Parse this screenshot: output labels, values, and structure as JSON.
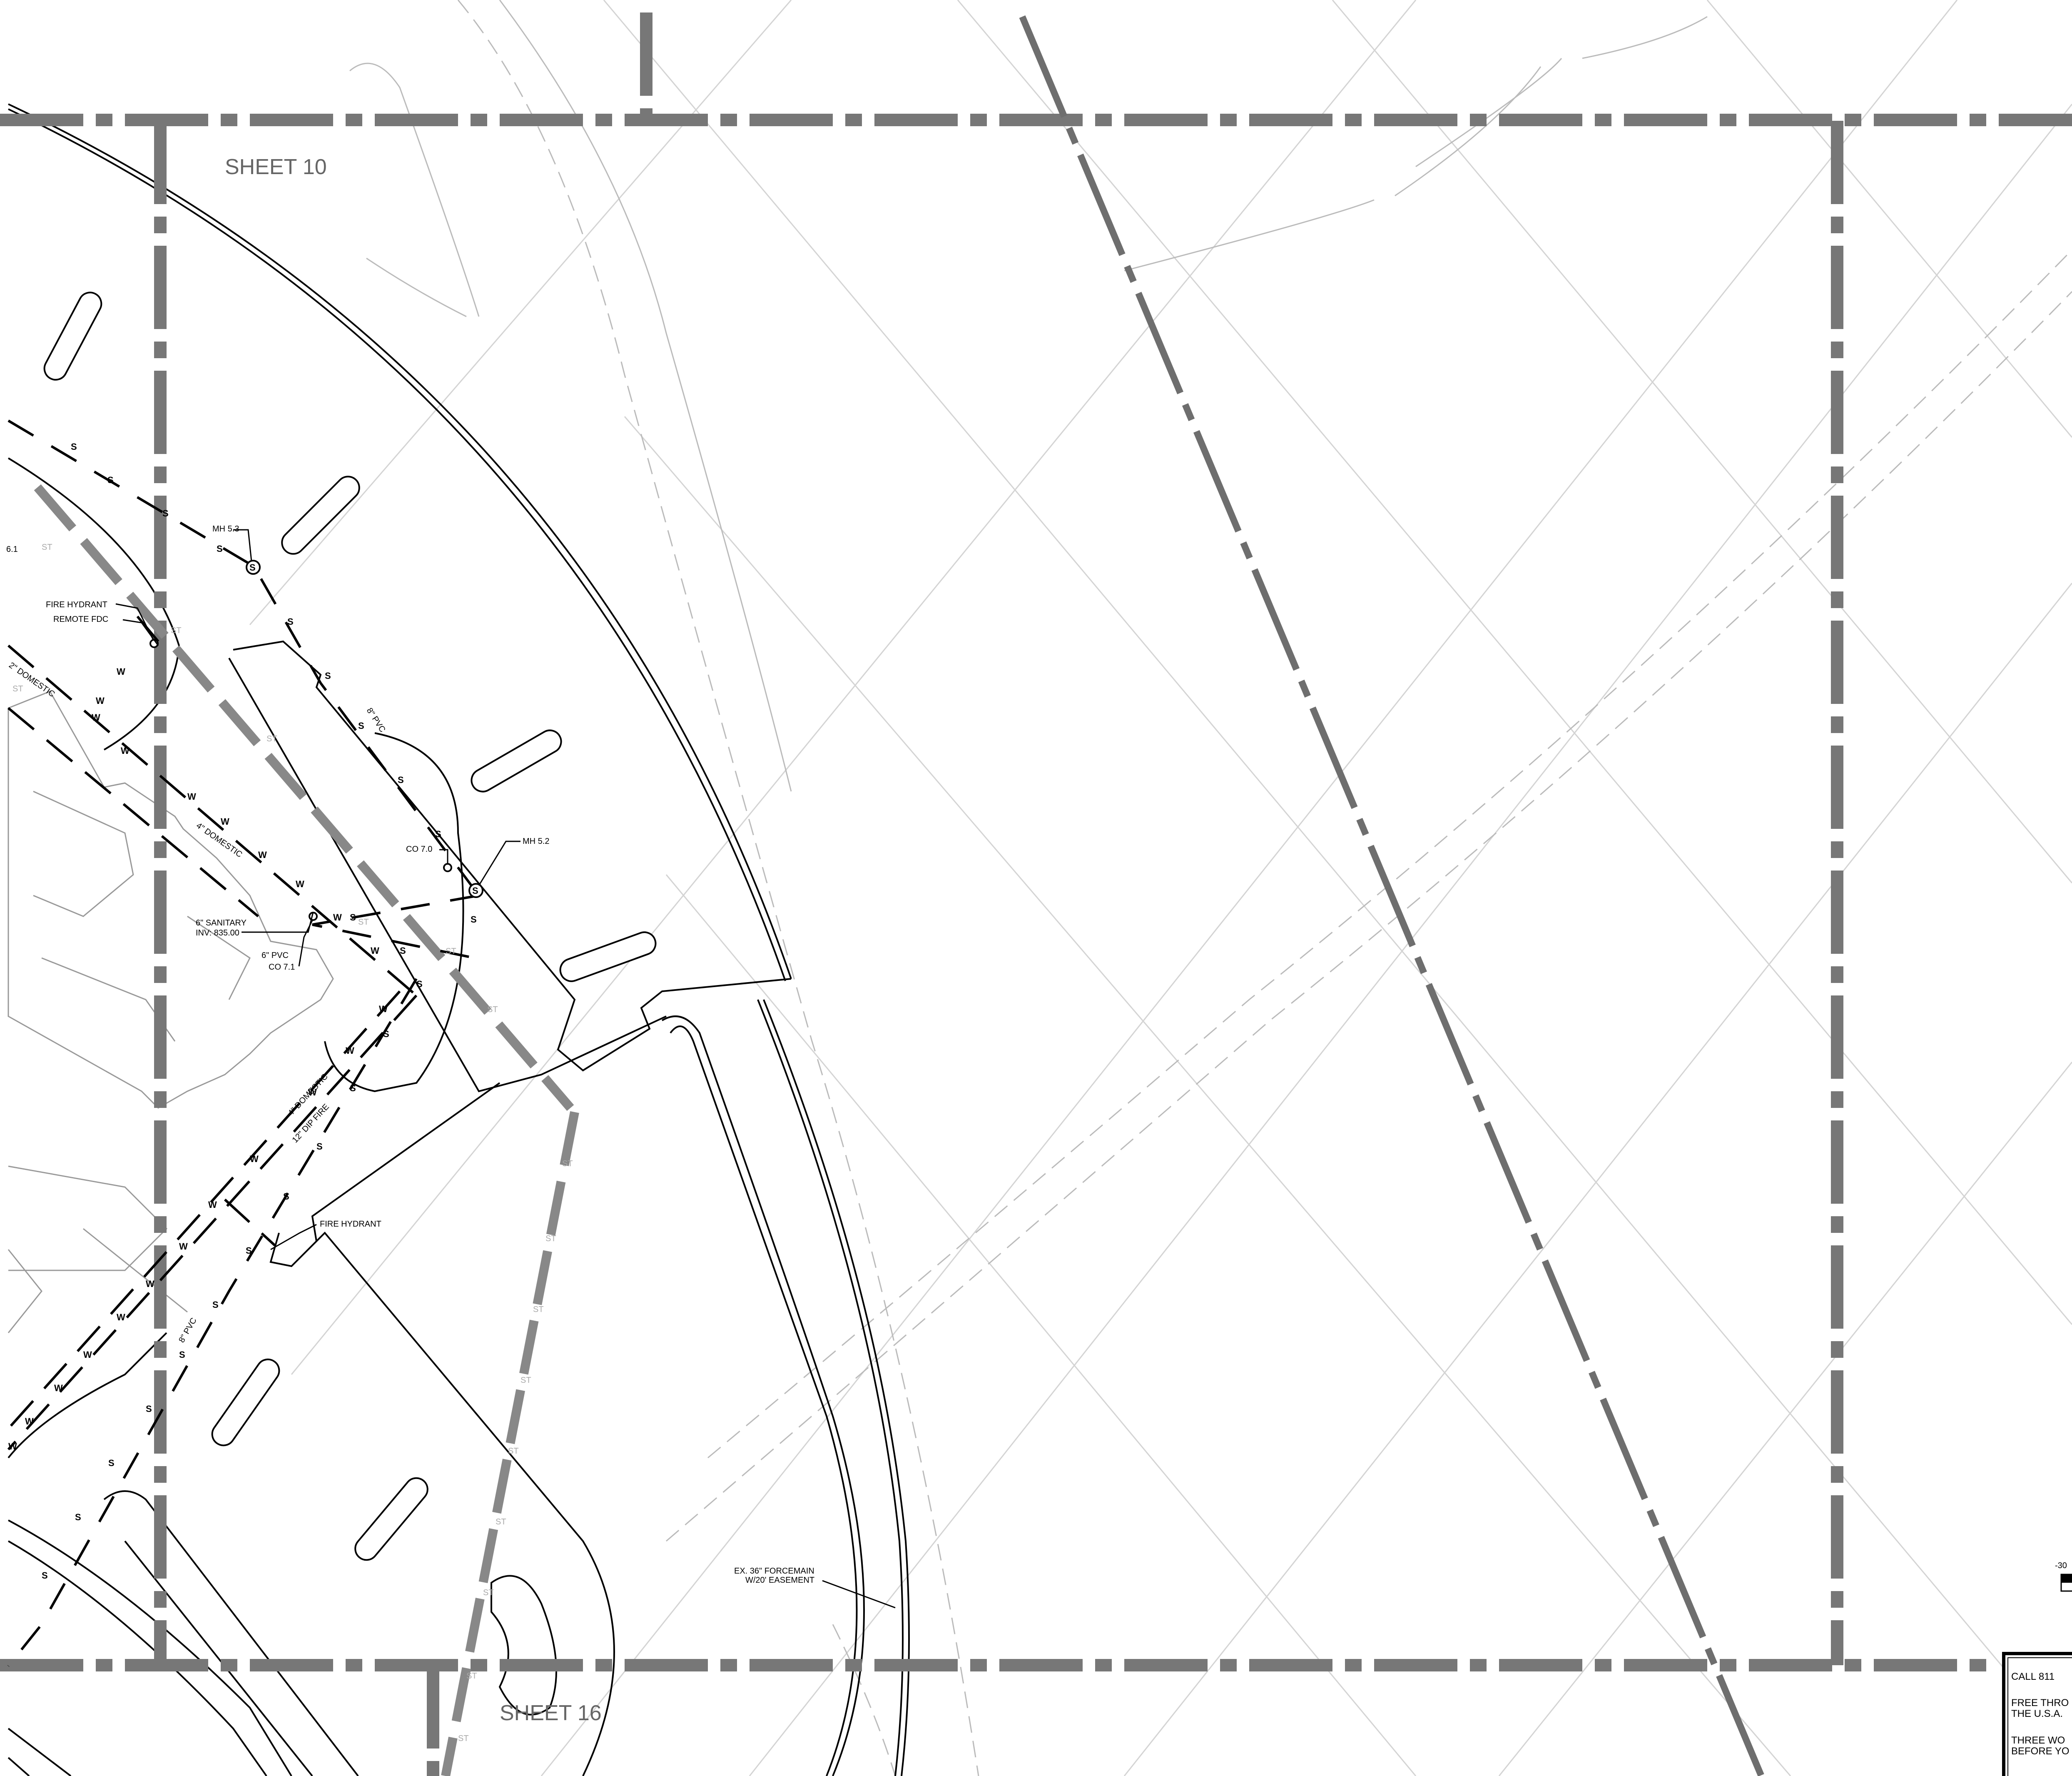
{
  "sheets": {
    "top": "SHEET 10",
    "bottom": "SHEET 16"
  },
  "labels": {
    "mh53": "MH 5.3",
    "mh52": "MH 5.2",
    "co70": "CO 7.0",
    "co71": "CO 7.1",
    "pvc6": "6\" PVC",
    "sanitary": "6\" SANITARY",
    "inv": "INV: 835.00",
    "fire_hydrant_top": "FIRE HYDRANT",
    "remote_fdc": "REMOTE FDC",
    "fire_hydrant_bottom": "FIRE HYDRANT",
    "domestic_4_a": "4\" DOMESTIC",
    "domestic_4_b": "4\" DOMESTIC",
    "domestic_2": "2\" DOMESTIC",
    "dip_fire": "12\" DIP FIRE",
    "pvc8_a": "8\" PVC",
    "pvc8_b": "8\" PVC",
    "edge_ref": "6.1",
    "forcemain_1": "EX. 36\" FORCEMAIN",
    "forcemain_2": "W/20' EASEMENT"
  },
  "scale_text": "-30",
  "callout": {
    "line1": "CALL 811",
    "line2": "FREE THRO",
    "line3": "THE U.S.A.",
    "line4": "THREE WO",
    "line5": "BEFORE YO"
  },
  "markers": {
    "sewer": "S",
    "water": "W",
    "storm": "ST",
    "manhole": "S"
  },
  "colors": {
    "matchline": "#777777",
    "utility": "#000000",
    "faint": "#bbbbbb",
    "grid": "#d0d0d0"
  }
}
